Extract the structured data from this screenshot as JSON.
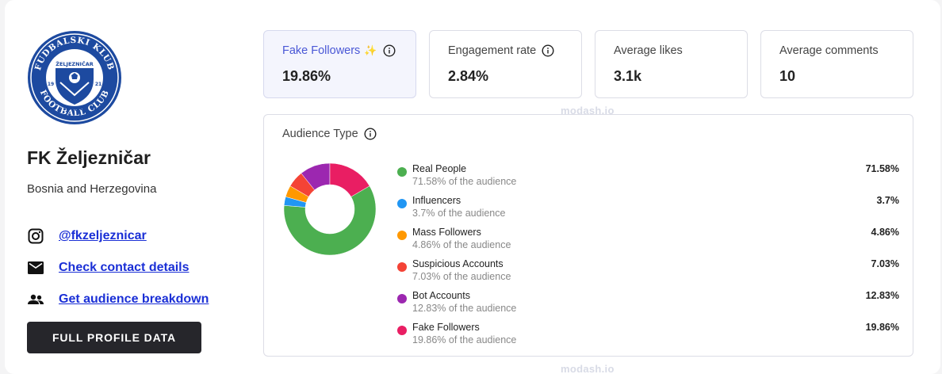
{
  "profile": {
    "logo_text": {
      "top_arc": "FUDBALSKI KLUB",
      "bottom_arc": "FOOTBALL CLUB",
      "center": "ŽELJEZNIČAR",
      "city": "SARAJEVO",
      "year_left": "19",
      "year_right": "21"
    },
    "name": "FK Željezničar",
    "country": "Bosnia and Herzegovina",
    "links": [
      {
        "icon": "instagram-icon",
        "label": "@fkzeljeznicar"
      },
      {
        "icon": "mail-icon",
        "label": "Check contact details"
      },
      {
        "icon": "people-icon",
        "label": "Get audience breakdown"
      }
    ],
    "cta_label": "FULL PROFILE DATA"
  },
  "stats": [
    {
      "label": "Fake Followers",
      "value": "19.86%",
      "icons": [
        "sparkle-icon",
        "info-icon"
      ]
    },
    {
      "label": "Engagement rate",
      "value": "2.84%",
      "icons": [
        "info-icon"
      ]
    },
    {
      "label": "Average likes",
      "value": "3.1k"
    },
    {
      "label": "Average comments",
      "value": "10"
    }
  ],
  "watermark": "modash.io",
  "audience": {
    "title": "Audience Type",
    "items": [
      {
        "name": "Real People",
        "sub": "71.58% of the audience",
        "pct": "71.58%",
        "value": 71.58,
        "color": "#4caf50"
      },
      {
        "name": "Influencers",
        "sub": "3.7% of the audience",
        "pct": "3.7%",
        "value": 3.7,
        "color": "#2196f3"
      },
      {
        "name": "Mass Followers",
        "sub": "4.86% of the audience",
        "pct": "4.86%",
        "value": 4.86,
        "color": "#ff9800"
      },
      {
        "name": "Suspicious Accounts",
        "sub": "7.03% of the audience",
        "pct": "7.03%",
        "value": 7.03,
        "color": "#f44336"
      },
      {
        "name": "Bot Accounts",
        "sub": "12.83% of the audience",
        "pct": "12.83%",
        "value": 12.83,
        "color": "#9c27b0"
      },
      {
        "name": "Fake Followers",
        "sub": "19.86% of the audience",
        "pct": "19.86%",
        "value": 19.86,
        "color": "#e91e63"
      }
    ]
  }
}
